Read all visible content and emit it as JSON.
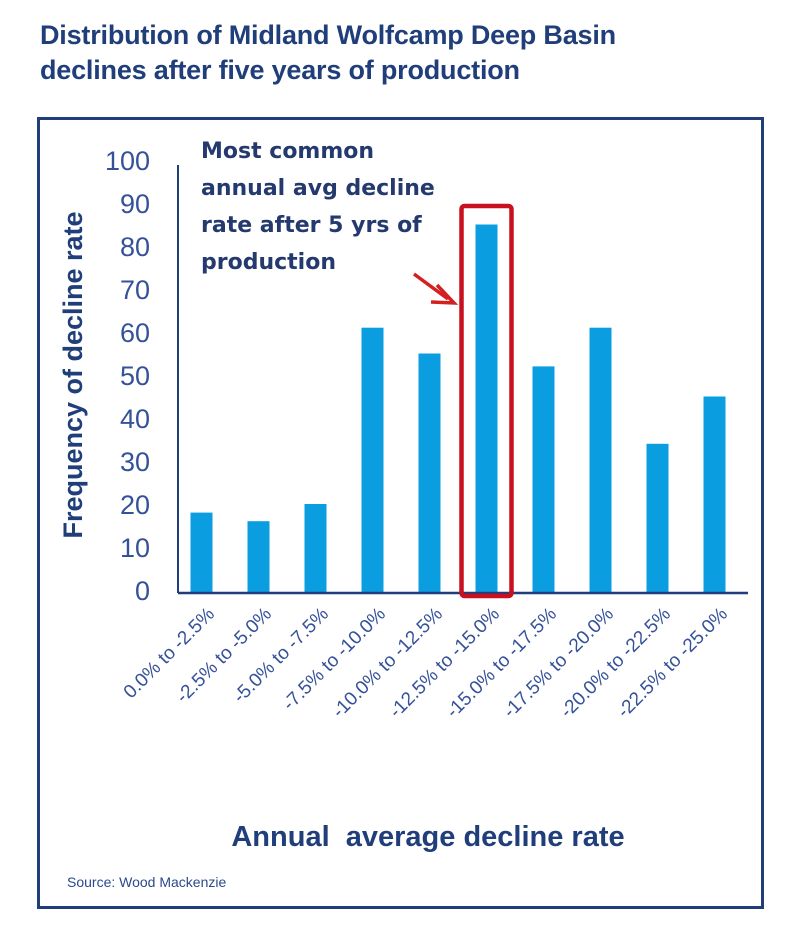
{
  "chart_data": {
    "type": "bar",
    "title": "Distribution of Midland Wolfcamp Deep Basin declines after five years of production",
    "title_lines": [
      "Distribution of Midland Wolfcamp Deep Basin",
      "declines after five years of production"
    ],
    "xlabel": "Annual  average decline rate",
    "ylabel": "Frequency of decline rate",
    "categories": [
      "0.0% to -2.5%",
      "-2.5% to -5.0%",
      "-5.0% to -7.5%",
      "-7.5% to -10.0%",
      "-10.0% to -12.5%",
      "-12.5% to -15.0%",
      "-15.0% to -17.5%",
      "-17.5% to -20.0%",
      "-20.0% to -22.5%",
      "-22.5% to -25.0%"
    ],
    "values": [
      18,
      16,
      20,
      61,
      55,
      85,
      52,
      61,
      34,
      45
    ],
    "ylim": [
      0,
      100
    ],
    "yticks": [
      0,
      10,
      20,
      30,
      40,
      50,
      60,
      70,
      80,
      90,
      100
    ],
    "grid": false,
    "legend": null,
    "highlight_index": 5,
    "annotation": {
      "lines": [
        "Most common",
        "annual avg decline",
        "rate after 5 yrs of",
        "production"
      ],
      "target_category": "-12.5% to -15.0%"
    },
    "source": "Source: Wood Mackenzie",
    "colors": {
      "bar": "#0a9ee0",
      "highlight_box": "#c8101e",
      "arrow": "#d42020",
      "text": "#1f3e7a",
      "axis": "#1f3e7a"
    }
  }
}
